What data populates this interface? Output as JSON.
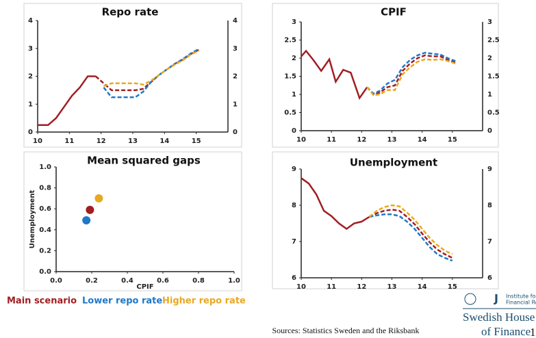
{
  "chart_data": [
    {
      "type": "line",
      "title": "Repo rate",
      "right_axis": true,
      "x": [
        10,
        10.33,
        10.58,
        10.83,
        11.08,
        11.33,
        11.58,
        11.83,
        12.08,
        12.33,
        12.58,
        12.83,
        13.08,
        13.33,
        13.58,
        13.83,
        14.08,
        14.33,
        14.58,
        14.83,
        15.08
      ],
      "xlim": [
        10,
        16
      ],
      "xticks": [
        10,
        11,
        12,
        13,
        14,
        15
      ],
      "ylim": [
        0,
        4
      ],
      "yticks": [
        0,
        1,
        2,
        3,
        4
      ],
      "series": [
        {
          "color": "#a11d21",
          "dash": false,
          "values": [
            0.25,
            0.25,
            0.5,
            0.9,
            1.3,
            1.6,
            2.0,
            2.0,
            null,
            null,
            null,
            null,
            null,
            null,
            null,
            null,
            null,
            null,
            null,
            null,
            null
          ]
        },
        {
          "color": "#a11d21",
          "dash": true,
          "values": [
            null,
            null,
            null,
            null,
            null,
            null,
            null,
            2.0,
            1.75,
            1.5,
            1.5,
            1.5,
            1.5,
            1.55,
            1.8,
            2.05,
            2.25,
            2.45,
            2.6,
            2.8,
            2.95
          ]
        },
        {
          "color": "#1f78c8",
          "dash": true,
          "values": [
            null,
            null,
            null,
            null,
            null,
            null,
            null,
            null,
            1.6,
            1.25,
            1.25,
            1.25,
            1.25,
            1.45,
            1.8,
            2.05,
            2.25,
            2.45,
            2.62,
            2.82,
            2.98
          ]
        },
        {
          "color": "#e8a820",
          "dash": true,
          "values": [
            null,
            null,
            null,
            null,
            null,
            null,
            null,
            null,
            1.65,
            1.75,
            1.75,
            1.75,
            1.75,
            1.7,
            1.85,
            2.05,
            2.25,
            2.42,
            2.58,
            2.78,
            2.92
          ]
        }
      ]
    },
    {
      "type": "line",
      "title": "CPIF",
      "right_axis": true,
      "x": [
        10,
        10.16,
        10.4,
        10.66,
        10.93,
        11.14,
        11.39,
        11.64,
        11.93,
        12.18,
        12.39,
        12.6,
        12.85,
        13.1,
        13.35,
        13.6,
        13.85,
        14.1,
        14.35,
        14.6,
        14.85,
        15.1
      ],
      "xlim": [
        10,
        16
      ],
      "xticks": [
        10,
        11,
        12,
        13,
        14,
        15
      ],
      "ylim": [
        0,
        3
      ],
      "yticks": [
        0,
        0.5,
        1,
        1.5,
        2,
        2.5,
        3
      ],
      "series": [
        {
          "color": "#a11d21",
          "dash": false,
          "values": [
            2.05,
            2.2,
            1.95,
            1.65,
            1.97,
            1.35,
            1.68,
            1.6,
            0.9,
            1.2,
            null,
            null,
            null,
            null,
            null,
            null,
            null,
            null,
            null,
            null,
            null,
            null
          ]
        },
        {
          "color": "#a11d21",
          "dash": true,
          "values": [
            null,
            null,
            null,
            null,
            null,
            null,
            null,
            null,
            null,
            1.2,
            1.0,
            1.05,
            1.2,
            1.25,
            1.65,
            1.85,
            2.0,
            2.08,
            2.05,
            2.05,
            1.95,
            1.88
          ]
        },
        {
          "color": "#1f78c8",
          "dash": true,
          "values": [
            null,
            null,
            null,
            null,
            null,
            null,
            null,
            null,
            null,
            1.2,
            1.02,
            1.1,
            1.3,
            1.4,
            1.75,
            1.95,
            2.08,
            2.15,
            2.12,
            2.1,
            2.0,
            1.92
          ]
        },
        {
          "color": "#e8a820",
          "dash": true,
          "values": [
            null,
            null,
            null,
            null,
            null,
            null,
            null,
            null,
            null,
            1.2,
            0.98,
            1.0,
            1.12,
            1.12,
            1.55,
            1.75,
            1.9,
            1.97,
            1.95,
            1.97,
            1.92,
            1.85
          ]
        }
      ]
    },
    {
      "type": "scatter",
      "title": "Mean squared gaps",
      "x_label": "CPIF",
      "y_label": "Unemployment",
      "xlim": [
        0,
        1
      ],
      "ylim": [
        0,
        1
      ],
      "xticks": [
        {
          "value": 0,
          "label": "0.0"
        },
        0.2,
        0.4,
        0.6,
        0.8,
        {
          "value": 1,
          "label": "1.0"
        }
      ],
      "yticks": [
        {
          "value": 0,
          "label": "0.0"
        },
        0.2,
        0.4,
        0.6,
        0.8,
        {
          "value": 1,
          "label": "1.0"
        }
      ],
      "series": [
        {
          "color": "#a11d21",
          "x": [
            0.19
          ],
          "values": [
            0.59
          ]
        },
        {
          "color": "#1f78c8",
          "x": [
            0.17
          ],
          "values": [
            0.49
          ]
        },
        {
          "color": "#e8a820",
          "x": [
            0.24
          ],
          "values": [
            0.7
          ]
        }
      ]
    },
    {
      "type": "line",
      "title": "Unemployment",
      "right_axis": true,
      "x": [
        10,
        10.25,
        10.5,
        10.75,
        11,
        11.25,
        11.5,
        11.75,
        12,
        12.25,
        12.5,
        12.75,
        13,
        13.25,
        13.5,
        13.75,
        14,
        14.25,
        14.5,
        14.75,
        15
      ],
      "xlim": [
        10,
        16
      ],
      "xticks": [
        10,
        11,
        12,
        13,
        14,
        15
      ],
      "ylim": [
        6,
        9
      ],
      "yticks": [
        6,
        7,
        8,
        9
      ],
      "series": [
        {
          "color": "#a11d21",
          "dash": false,
          "values": [
            8.75,
            8.6,
            8.3,
            7.85,
            7.7,
            7.5,
            7.35,
            7.5,
            7.55,
            7.68,
            null,
            null,
            null,
            null,
            null,
            null,
            null,
            null,
            null,
            null,
            null
          ]
        },
        {
          "color": "#a11d21",
          "dash": true,
          "values": [
            null,
            null,
            null,
            null,
            null,
            null,
            null,
            null,
            null,
            7.68,
            7.78,
            7.85,
            7.88,
            7.85,
            7.68,
            7.48,
            7.22,
            6.98,
            6.78,
            6.65,
            6.55
          ]
        },
        {
          "color": "#1f78c8",
          "dash": true,
          "values": [
            null,
            null,
            null,
            null,
            null,
            null,
            null,
            null,
            null,
            7.68,
            7.72,
            7.75,
            7.75,
            7.7,
            7.55,
            7.35,
            7.1,
            6.85,
            6.65,
            6.55,
            6.47
          ]
        },
        {
          "color": "#e8a820",
          "dash": true,
          "values": [
            null,
            null,
            null,
            null,
            null,
            null,
            null,
            null,
            null,
            7.68,
            7.85,
            7.95,
            8.0,
            7.97,
            7.8,
            7.6,
            7.35,
            7.1,
            6.9,
            6.75,
            6.65
          ]
        }
      ]
    }
  ],
  "legend": [
    {
      "name": "Main scenario",
      "color": "#a11d21"
    },
    {
      "name": "Lower repo rate",
      "color": "#1f78c8"
    },
    {
      "name": "Higher repo rate",
      "color": "#e8a820"
    }
  ],
  "footer": {
    "sources": "Sources: Statistics Sweden and the Riksbank",
    "institute_line1": "Institute for",
    "institute_line2": "Financial Research",
    "brand_line1": "Swedish House",
    "brand_line2": "of Finance",
    "page": "1"
  }
}
